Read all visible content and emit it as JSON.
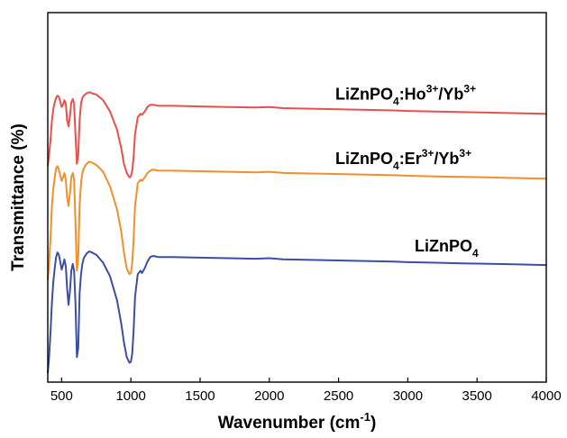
{
  "chart_data": {
    "type": "line",
    "xlabel": "Wavenumber (cm",
    "xlabel_sup": "-1",
    "xlabel_tail": ")",
    "ylabel": "Transmittance (%)",
    "xlim": [
      400,
      4000
    ],
    "ylim": [
      0,
      3.25
    ],
    "grid": false,
    "x_ticks": [
      500,
      1000,
      1500,
      2000,
      2500,
      3000,
      3500,
      4000
    ],
    "x_tick_labels": [
      "500",
      "1000",
      "1500",
      "2000",
      "2500",
      "3000",
      "3500",
      "4000"
    ],
    "series": [
      {
        "name": "LiZnPO4",
        "label_parts": [
          [
            "LiZnPO",
            "n"
          ],
          [
            "4",
            "sub"
          ]
        ],
        "color": "#3b4ea3",
        "x": [
          400,
          410,
          420,
          430,
          440,
          450,
          460,
          470,
          480,
          490,
          500,
          510,
          520,
          530,
          540,
          550,
          560,
          570,
          580,
          590,
          600,
          610,
          620,
          630,
          640,
          650,
          660,
          680,
          700,
          720,
          750,
          800,
          850,
          900,
          930,
          950,
          970,
          990,
          1000,
          1010,
          1020,
          1030,
          1050,
          1070,
          1080,
          1100,
          1120,
          1140,
          1160,
          1200,
          1300,
          1500,
          1700,
          1900,
          2000,
          2100,
          2300,
          2500,
          2700,
          2900,
          3000,
          3200,
          3400,
          3600,
          3800,
          4000
        ],
        "y": [
          0.08,
          0.22,
          0.45,
          0.7,
          0.88,
          1.0,
          1.1,
          1.14,
          1.12,
          1.06,
          0.99,
          1.03,
          1.08,
          1.02,
          0.82,
          0.68,
          0.8,
          0.98,
          1.04,
          0.98,
          0.7,
          0.22,
          0.3,
          0.78,
          0.95,
          1.04,
          1.09,
          1.13,
          1.15,
          1.14,
          1.12,
          1.05,
          0.93,
          0.72,
          0.52,
          0.35,
          0.22,
          0.17,
          0.18,
          0.25,
          0.45,
          0.75,
          0.95,
          0.98,
          0.96,
          1.0,
          1.06,
          1.1,
          1.11,
          1.1,
          1.1,
          1.095,
          1.09,
          1.085,
          1.09,
          1.08,
          1.075,
          1.07,
          1.065,
          1.06,
          1.055,
          1.05,
          1.045,
          1.04,
          1.035,
          1.03
        ]
      },
      {
        "name": "LiZnPO4:Er3+/Yb3+",
        "label_parts": [
          [
            "LiZnPO",
            "n"
          ],
          [
            "4",
            "sub"
          ],
          [
            ":Er",
            "n"
          ],
          [
            "3+",
            "sup"
          ],
          [
            "/Yb",
            "n"
          ],
          [
            "3+",
            "sup"
          ]
        ],
        "color": "#f0902a",
        "x": [
          400,
          410,
          420,
          430,
          440,
          450,
          460,
          470,
          480,
          490,
          500,
          510,
          520,
          530,
          540,
          550,
          560,
          570,
          580,
          590,
          600,
          610,
          620,
          630,
          640,
          650,
          660,
          680,
          700,
          720,
          750,
          800,
          850,
          900,
          930,
          950,
          970,
          990,
          1000,
          1010,
          1020,
          1030,
          1050,
          1070,
          1080,
          1100,
          1120,
          1140,
          1160,
          1200,
          1300,
          1500,
          1700,
          1900,
          2000,
          2100,
          2300,
          2500,
          2700,
          2900,
          3000,
          3200,
          3400,
          3600,
          3800,
          4000
        ],
        "y": [
          0.9,
          1.05,
          1.28,
          1.55,
          1.7,
          1.8,
          1.88,
          1.9,
          1.87,
          1.82,
          1.77,
          1.8,
          1.84,
          1.78,
          1.62,
          1.55,
          1.66,
          1.8,
          1.84,
          1.78,
          1.4,
          0.98,
          1.1,
          1.55,
          1.75,
          1.84,
          1.88,
          1.92,
          1.94,
          1.93,
          1.91,
          1.85,
          1.72,
          1.52,
          1.33,
          1.14,
          1.0,
          0.95,
          0.96,
          1.05,
          1.25,
          1.55,
          1.75,
          1.78,
          1.77,
          1.8,
          1.84,
          1.86,
          1.87,
          1.86,
          1.86,
          1.855,
          1.85,
          1.845,
          1.85,
          1.84,
          1.835,
          1.83,
          1.825,
          1.82,
          1.815,
          1.81,
          1.805,
          1.8,
          1.795,
          1.79
        ]
      },
      {
        "name": "LiZnPO4:Ho3+/Yb3+",
        "label_parts": [
          [
            "LiZnPO",
            "n"
          ],
          [
            "4",
            "sub"
          ],
          [
            ":Ho",
            "n"
          ],
          [
            "3+",
            "sup"
          ],
          [
            "/Yb",
            "n"
          ],
          [
            "3+",
            "sup"
          ]
        ],
        "color": "#e8504e",
        "x": [
          400,
          410,
          420,
          430,
          440,
          450,
          460,
          470,
          480,
          490,
          500,
          510,
          520,
          530,
          540,
          550,
          560,
          570,
          580,
          590,
          600,
          610,
          620,
          630,
          640,
          650,
          660,
          680,
          700,
          720,
          750,
          800,
          850,
          900,
          930,
          950,
          970,
          990,
          1000,
          1010,
          1020,
          1030,
          1050,
          1070,
          1080,
          1100,
          1120,
          1140,
          1160,
          1200,
          1300,
          1500,
          1700,
          1900,
          2000,
          2100,
          2300,
          2500,
          2700,
          2900,
          3000,
          3200,
          3400,
          3600,
          3800,
          4000
        ],
        "y": [
          1.9,
          2.0,
          2.14,
          2.3,
          2.4,
          2.46,
          2.5,
          2.52,
          2.51,
          2.47,
          2.42,
          2.44,
          2.48,
          2.45,
          2.3,
          2.25,
          2.34,
          2.46,
          2.49,
          2.45,
          2.18,
          1.92,
          2.0,
          2.3,
          2.45,
          2.5,
          2.52,
          2.54,
          2.55,
          2.54,
          2.53,
          2.48,
          2.38,
          2.22,
          2.06,
          1.92,
          1.84,
          1.8,
          1.81,
          1.86,
          1.98,
          2.18,
          2.33,
          2.36,
          2.35,
          2.38,
          2.42,
          2.44,
          2.44,
          2.43,
          2.43,
          2.425,
          2.42,
          2.415,
          2.42,
          2.41,
          2.405,
          2.4,
          2.395,
          2.39,
          2.385,
          2.38,
          2.375,
          2.37,
          2.365,
          2.36
        ]
      }
    ]
  }
}
